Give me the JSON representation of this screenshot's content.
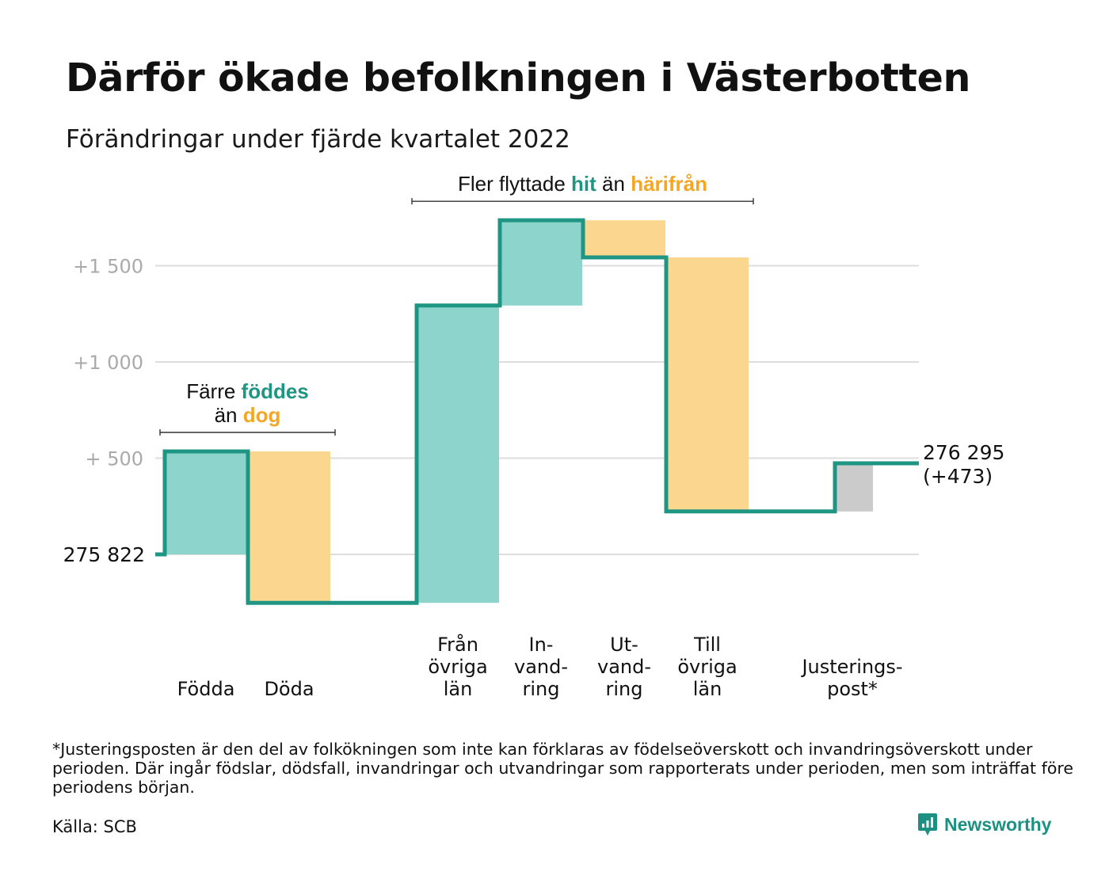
{
  "title": "Därför ökade befolkningen i Västerbotten",
  "subtitle": "Förändringar under fjärde kvartalet 2022",
  "colors": {
    "teal": "#1e9683",
    "teal_fill": "#8dd5cc",
    "orange": "#f5a623",
    "orange_fill": "#fad68e",
    "gray_fill": "#cbcbcb",
    "grid": "#dddddd",
    "tick_text": "#aaaaaa"
  },
  "chart_data": {
    "type": "waterfall",
    "base": 275822,
    "base_label": "275 822",
    "end_label": "276 295",
    "end_change_label": "(+473)",
    "y_ticks": [
      {
        "value": 500,
        "label": "+ 500"
      },
      {
        "value": 1000,
        "label": "+1 000"
      },
      {
        "value": 1500,
        "label": "+1 500"
      }
    ],
    "ylim": [
      -500,
      1800
    ],
    "steps": [
      {
        "label_lines": [
          "Födda"
        ],
        "change": 535,
        "kind": "in",
        "group": 0
      },
      {
        "label_lines": [
          "Döda"
        ],
        "change": -787,
        "kind": "out",
        "group": 0
      },
      {
        "label_lines": [
          "Från",
          "övriga",
          "län"
        ],
        "change": 1545,
        "kind": "in",
        "group": 1
      },
      {
        "label_lines": [
          "In-",
          "vand-",
          "ring"
        ],
        "change": 443,
        "kind": "in",
        "group": 1
      },
      {
        "label_lines": [
          "Ut-",
          "vand-",
          "ring"
        ],
        "change": -193,
        "kind": "out",
        "group": 1
      },
      {
        "label_lines": [
          "Till",
          "övriga",
          "län"
        ],
        "change": -1320,
        "kind": "out",
        "group": 1
      },
      {
        "label_lines": [
          "Justerings-",
          "post*"
        ],
        "change": 250,
        "kind": "adj",
        "group": 2
      }
    ],
    "annotations": [
      {
        "lines": [
          [
            {
              "text": "Färre ",
              "style": "plain"
            },
            {
              "text": "föddes",
              "style": "in"
            }
          ],
          [
            {
              "text": "än ",
              "style": "plain"
            },
            {
              "text": "dog",
              "style": "out"
            }
          ]
        ],
        "group": 0
      },
      {
        "lines": [
          [
            {
              "text": "Fler flyttade ",
              "style": "plain"
            },
            {
              "text": "hit",
              "style": "in"
            },
            {
              "text": " än ",
              "style": "plain"
            },
            {
              "text": "härifrån",
              "style": "out"
            }
          ]
        ],
        "group": 1
      }
    ]
  },
  "footnote": "*Justeringsposten är den del av folkökningen som inte kan förklaras av födelseöverskott och invandringsöverskott under perioden. Där ingår födslar, dödsfall, invandringar och utvandringar som rapporterats under perioden, men som inträffat före periodens början.",
  "source": "Källa: SCB",
  "brand": {
    "name": "Newsworthy",
    "icon": "newsworthy-logo-icon"
  }
}
